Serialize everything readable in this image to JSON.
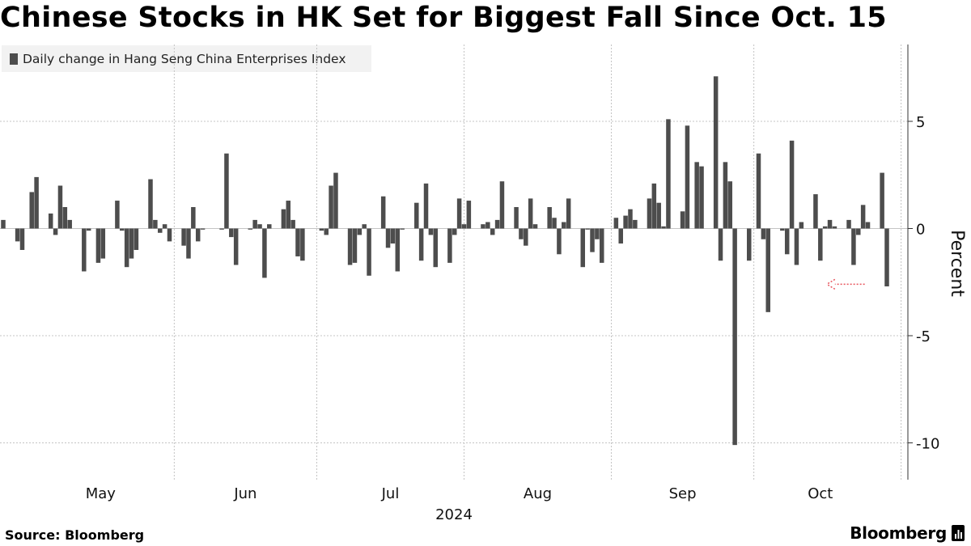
{
  "title": "Chinese Stocks in HK Set for Biggest Fall Since Oct. 15",
  "legend": {
    "label": "Daily change in Hang Seng China Enterprises Index",
    "color": "#4d4d4d"
  },
  "footer": {
    "source": "Source: Bloomberg",
    "brand": "Bloomberg"
  },
  "chart_data": {
    "type": "bar",
    "ylabel": "Percent",
    "ylim": [
      -11.5,
      8.5
    ],
    "yticks": [
      5,
      0,
      -5,
      -10
    ],
    "month_labels": [
      "May",
      "Jun",
      "Jul",
      "Aug",
      "Sep",
      "Oct"
    ],
    "year_label": "2024",
    "grid": true,
    "legend_position": "top-left",
    "bar_color": "#4d4d4d",
    "annotation": {
      "type": "arrow",
      "from_date": "2024-10-24",
      "to_date": "2024-10-15",
      "y": -2.6,
      "color": "#e8545c"
    },
    "series": [
      {
        "name": "Daily change in Hang Seng China Enterprises Index",
        "points": [
          [
            "2024-04-26",
            0.4
          ],
          [
            "2024-04-29",
            -0.6
          ],
          [
            "2024-04-30",
            -1.0
          ],
          [
            "2024-05-02",
            1.7
          ],
          [
            "2024-05-03",
            2.4
          ],
          [
            "2024-05-06",
            0.7
          ],
          [
            "2024-05-07",
            -0.3
          ],
          [
            "2024-05-08",
            2.0
          ],
          [
            "2024-05-09",
            1.0
          ],
          [
            "2024-05-10",
            0.4
          ],
          [
            "2024-05-13",
            -2.0
          ],
          [
            "2024-05-14",
            -0.1
          ],
          [
            "2024-05-16",
            -1.6
          ],
          [
            "2024-05-17",
            -1.4
          ],
          [
            "2024-05-20",
            1.3
          ],
          [
            "2024-05-21",
            -0.1
          ],
          [
            "2024-05-22",
            -1.8
          ],
          [
            "2024-05-23",
            -1.4
          ],
          [
            "2024-05-24",
            -1.0
          ],
          [
            "2024-05-27",
            2.3
          ],
          [
            "2024-05-28",
            0.4
          ],
          [
            "2024-05-29",
            -0.2
          ],
          [
            "2024-05-30",
            0.2
          ],
          [
            "2024-05-31",
            -0.6
          ],
          [
            "2024-06-03",
            -0.8
          ],
          [
            "2024-06-04",
            -1.4
          ],
          [
            "2024-06-05",
            1.0
          ],
          [
            "2024-06-06",
            -0.6
          ],
          [
            "2024-06-07",
            -0.05
          ],
          [
            "2024-06-11",
            -0.05
          ],
          [
            "2024-06-12",
            3.5
          ],
          [
            "2024-06-13",
            -0.4
          ],
          [
            "2024-06-14",
            -1.7
          ],
          [
            "2024-06-17",
            -0.05
          ],
          [
            "2024-06-18",
            0.4
          ],
          [
            "2024-06-19",
            0.2
          ],
          [
            "2024-06-20",
            -2.3
          ],
          [
            "2024-06-21",
            0.2
          ],
          [
            "2024-06-24",
            0.9
          ],
          [
            "2024-06-25",
            1.3
          ],
          [
            "2024-06-26",
            0.4
          ],
          [
            "2024-06-27",
            -1.3
          ],
          [
            "2024-06-28",
            -1.5
          ],
          [
            "2024-07-02",
            -0.1
          ],
          [
            "2024-07-03",
            -0.3
          ],
          [
            "2024-07-04",
            2.0
          ],
          [
            "2024-07-05",
            2.6
          ],
          [
            "2024-07-08",
            -1.7
          ],
          [
            "2024-07-09",
            -1.6
          ],
          [
            "2024-07-10",
            -0.3
          ],
          [
            "2024-07-11",
            0.2
          ],
          [
            "2024-07-12",
            -2.2
          ],
          [
            "2024-07-15",
            1.5
          ],
          [
            "2024-07-16",
            -0.9
          ],
          [
            "2024-07-17",
            -0.7
          ],
          [
            "2024-07-18",
            -2.0
          ],
          [
            "2024-07-19",
            -0.05
          ],
          [
            "2024-07-22",
            1.2
          ],
          [
            "2024-07-23",
            -1.5
          ],
          [
            "2024-07-24",
            2.1
          ],
          [
            "2024-07-25",
            -0.3
          ],
          [
            "2024-07-26",
            -1.8
          ],
          [
            "2024-07-29",
            -1.6
          ],
          [
            "2024-07-30",
            -0.3
          ],
          [
            "2024-07-31",
            1.4
          ],
          [
            "2024-08-01",
            0.2
          ],
          [
            "2024-08-02",
            1.3
          ],
          [
            "2024-08-05",
            0.2
          ],
          [
            "2024-08-06",
            0.3
          ],
          [
            "2024-08-07",
            -0.3
          ],
          [
            "2024-08-08",
            0.4
          ],
          [
            "2024-08-09",
            2.2
          ],
          [
            "2024-08-12",
            1.0
          ],
          [
            "2024-08-13",
            -0.5
          ],
          [
            "2024-08-14",
            -0.8
          ],
          [
            "2024-08-15",
            1.4
          ],
          [
            "2024-08-16",
            0.2
          ],
          [
            "2024-08-19",
            1.0
          ],
          [
            "2024-08-20",
            0.5
          ],
          [
            "2024-08-21",
            -1.2
          ],
          [
            "2024-08-22",
            0.3
          ],
          [
            "2024-08-23",
            1.4
          ],
          [
            "2024-08-26",
            -1.8
          ],
          [
            "2024-08-27",
            -0.05
          ],
          [
            "2024-08-28",
            -1.1
          ],
          [
            "2024-08-29",
            -0.5
          ],
          [
            "2024-08-30",
            -1.6
          ],
          [
            "2024-09-02",
            0.5
          ],
          [
            "2024-09-03",
            -0.7
          ],
          [
            "2024-09-04",
            0.6
          ],
          [
            "2024-09-05",
            0.9
          ],
          [
            "2024-09-06",
            0.4
          ],
          [
            "2024-09-09",
            1.4
          ],
          [
            "2024-09-10",
            2.1
          ],
          [
            "2024-09-11",
            1.2
          ],
          [
            "2024-09-12",
            0.1
          ],
          [
            "2024-09-13",
            5.1
          ],
          [
            "2024-09-16",
            0.8
          ],
          [
            "2024-09-17",
            4.8
          ],
          [
            "2024-09-19",
            3.1
          ],
          [
            "2024-09-20",
            2.9
          ],
          [
            "2024-09-23",
            7.1
          ],
          [
            "2024-09-24",
            -1.5
          ],
          [
            "2024-09-25",
            3.1
          ],
          [
            "2024-09-26",
            2.2
          ],
          [
            "2024-09-27",
            -10.1
          ],
          [
            "2024-09-30",
            -1.5
          ],
          [
            "2024-10-02",
            3.5
          ],
          [
            "2024-10-03",
            -0.5
          ],
          [
            "2024-10-04",
            -3.9
          ],
          [
            "2024-10-07",
            -0.1
          ],
          [
            "2024-10-08",
            -1.2
          ],
          [
            "2024-10-09",
            4.1
          ],
          [
            "2024-10-10",
            -1.7
          ],
          [
            "2024-10-11",
            0.3
          ],
          [
            "2024-10-14",
            1.6
          ],
          [
            "2024-10-15",
            -1.5
          ],
          [
            "2024-10-16",
            0.1
          ],
          [
            "2024-10-17",
            0.4
          ],
          [
            "2024-10-18",
            0.1
          ],
          [
            "2024-10-21",
            0.4
          ],
          [
            "2024-10-22",
            -1.7
          ],
          [
            "2024-10-23",
            -0.3
          ],
          [
            "2024-10-24",
            1.1
          ],
          [
            "2024-10-25",
            0.3
          ],
          [
            "2024-10-28",
            2.6
          ],
          [
            "2024-10-29",
            -2.7
          ]
        ]
      }
    ]
  }
}
